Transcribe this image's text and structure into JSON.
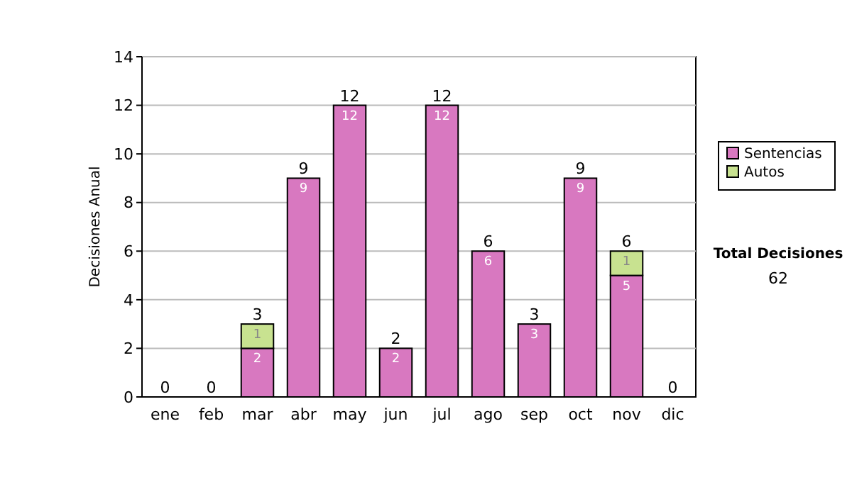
{
  "chart_data": {
    "type": "bar",
    "stacked": true,
    "ylabel": "Decisiones Anual",
    "categories": [
      "ene",
      "feb",
      "mar",
      "abr",
      "may",
      "jun",
      "jul",
      "ago",
      "sep",
      "oct",
      "nov",
      "dic"
    ],
    "series": [
      {
        "name": "Sentencias",
        "color": "#d878c0",
        "values": [
          0,
          0,
          2,
          9,
          12,
          2,
          12,
          6,
          3,
          9,
          5,
          0
        ],
        "value_labels": [
          null,
          null,
          "2",
          "9",
          "12",
          "2",
          "12",
          "6",
          "3",
          "9",
          "5",
          null
        ]
      },
      {
        "name": "Autos",
        "color": "#c8e290",
        "values": [
          null,
          null,
          1,
          null,
          null,
          null,
          null,
          null,
          null,
          null,
          1,
          null
        ],
        "value_labels": [
          null,
          null,
          "1",
          null,
          null,
          null,
          null,
          null,
          null,
          null,
          "1",
          null
        ]
      }
    ],
    "totals": [
      "0",
      "0",
      "3",
      "9",
      "12",
      "2",
      "12",
      "6",
      "3",
      "9",
      "6",
      "0"
    ],
    "ylim": [
      0,
      14
    ],
    "yticks": [
      0,
      2,
      4,
      6,
      8,
      10,
      12,
      14
    ],
    "grid": "y",
    "legend": "right",
    "annotations": [
      "Total Decisiones",
      "62"
    ]
  }
}
